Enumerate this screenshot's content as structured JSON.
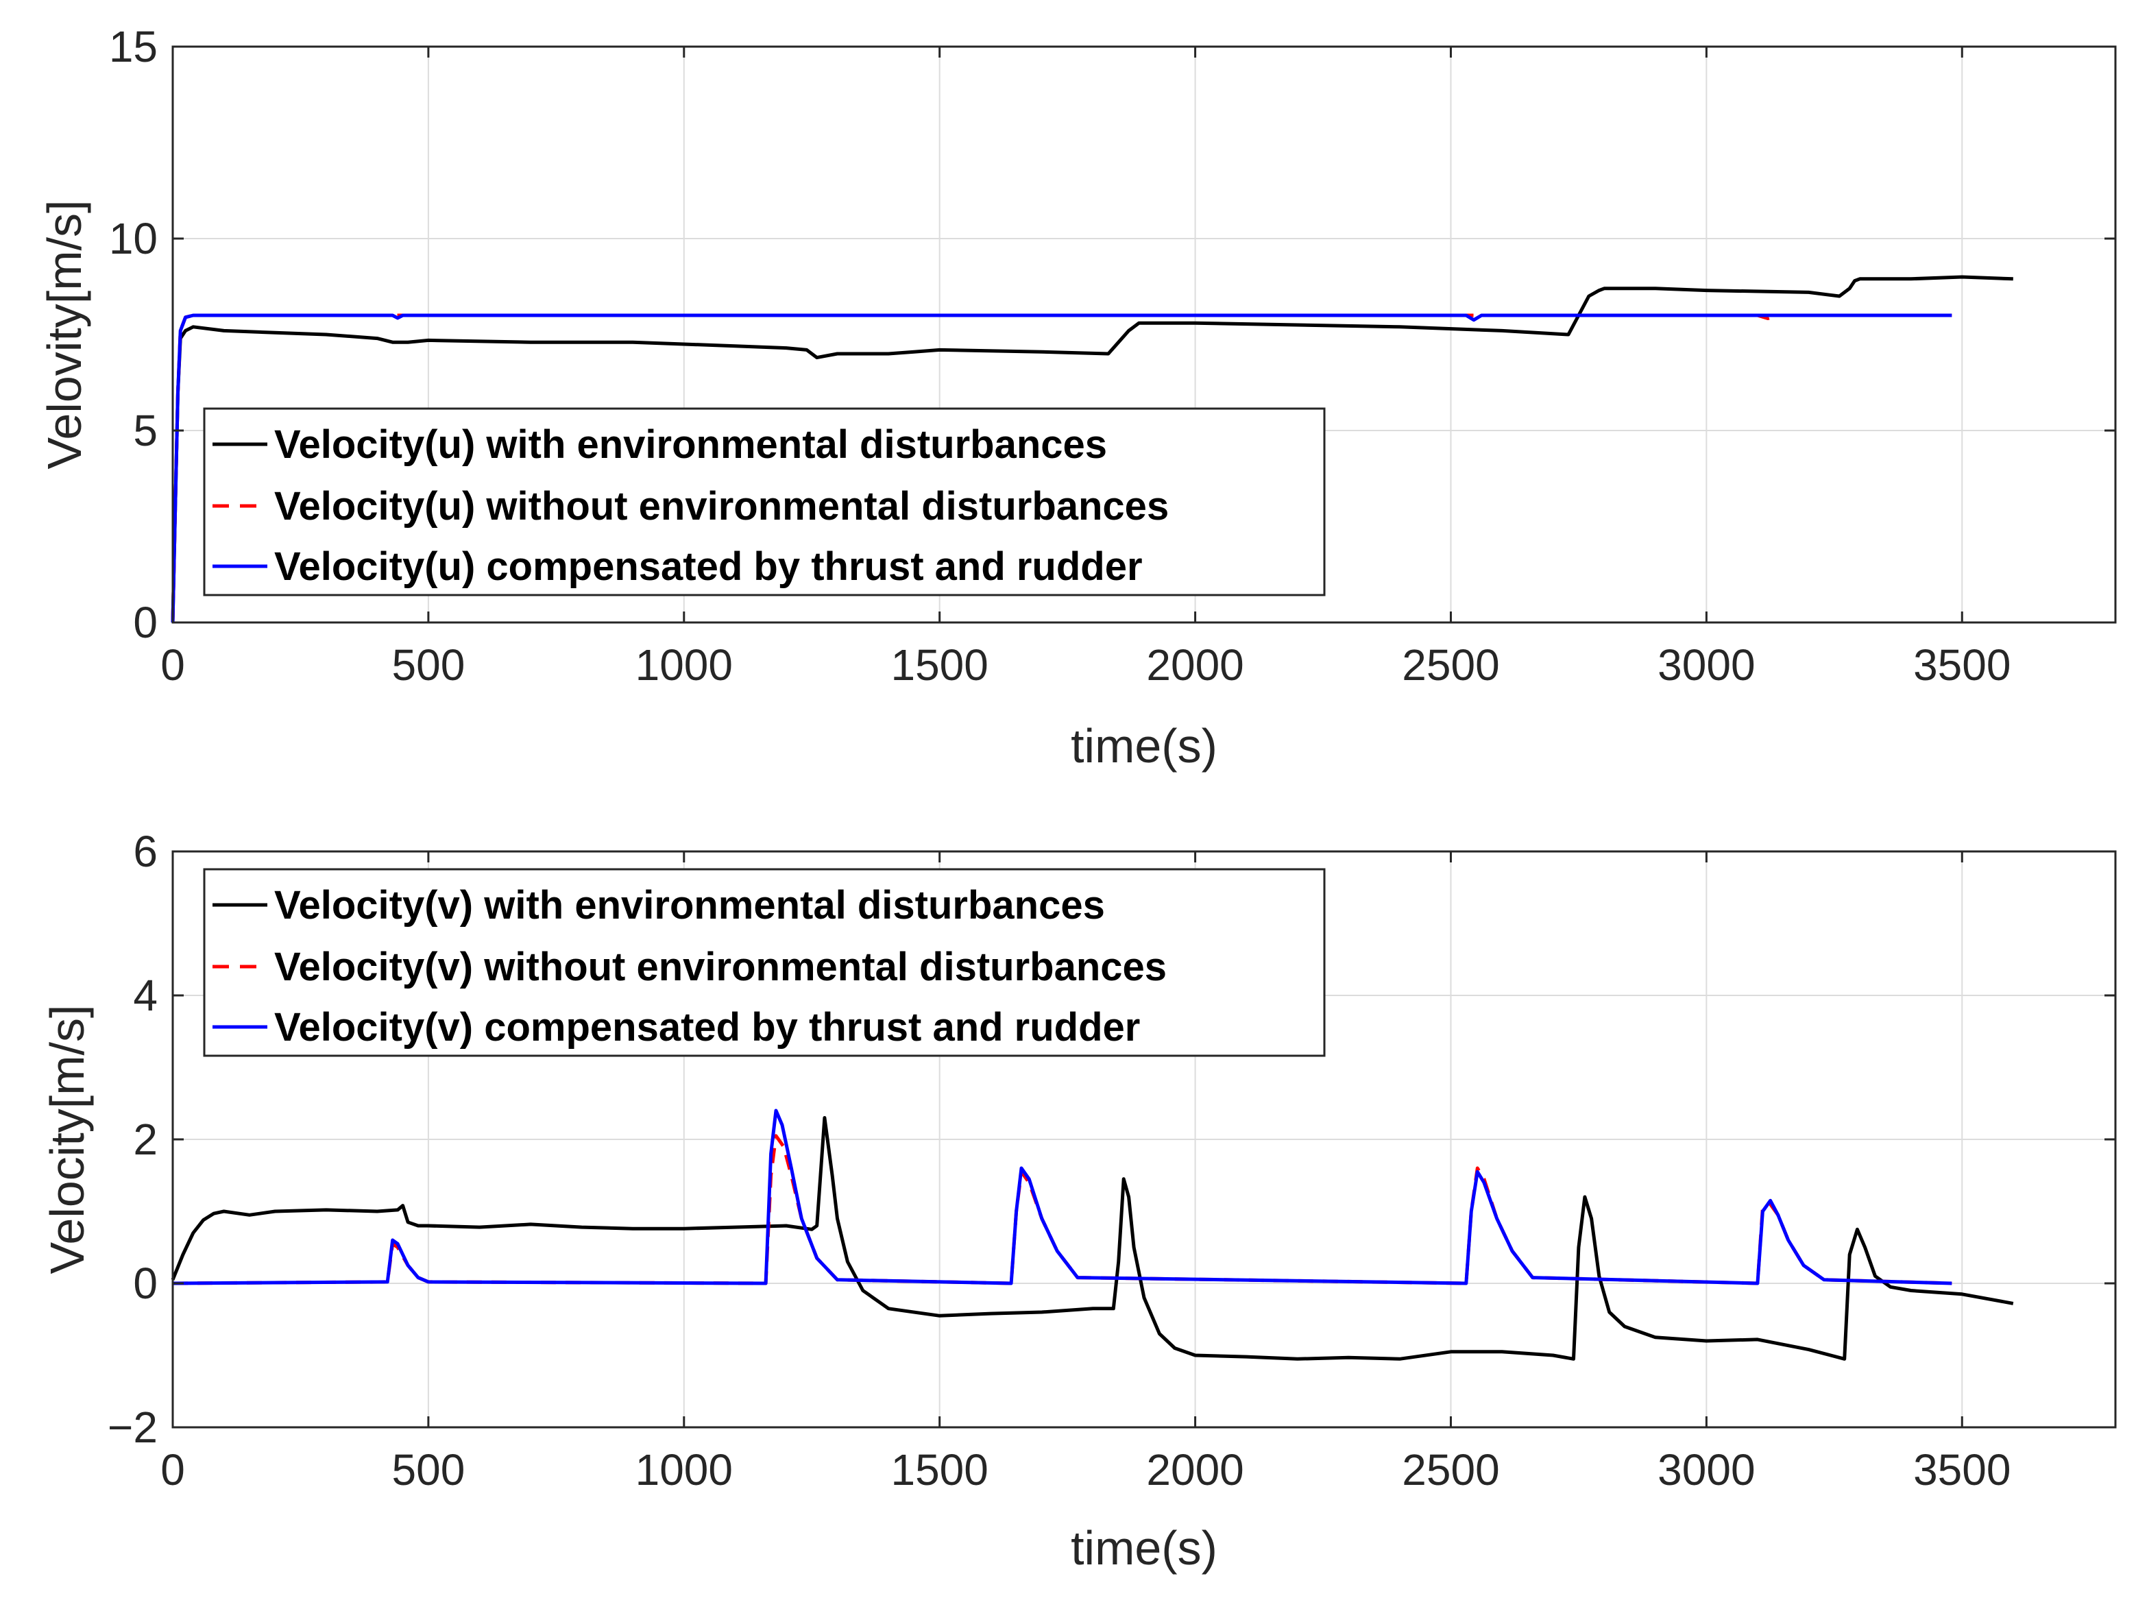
{
  "colors": {
    "with": "#000000",
    "without": "#ff0000",
    "compensated": "#0000ff",
    "axis": "#262626",
    "grid": "#dcdcdc"
  },
  "chart_data": [
    {
      "type": "line",
      "xlabel": "time(s)",
      "ylabel": "Velovity[m/s]",
      "xlim": [
        0,
        3800
      ],
      "ylim": [
        0,
        15
      ],
      "xticks": [
        0,
        500,
        1000,
        1500,
        2000,
        2500,
        3000,
        3500
      ],
      "yticks": [
        0,
        5,
        10,
        15
      ],
      "ytick_labels": [
        "0",
        "5",
        "10",
        "15"
      ],
      "grid": true,
      "legend_position": "lower-left",
      "series": [
        {
          "name": "Velocity(u) with environmental disturbances",
          "color_key": "with",
          "style": "solid",
          "x": [
            0,
            5,
            10,
            15,
            25,
            40,
            100,
            200,
            300,
            400,
            430,
            460,
            500,
            700,
            900,
            1100,
            1200,
            1240,
            1260,
            1300,
            1400,
            1450,
            1500,
            1700,
            1830,
            1850,
            1870,
            1890,
            2000,
            2200,
            2400,
            2600,
            2730,
            2750,
            2770,
            2790,
            2800,
            2900,
            3000,
            3200,
            3260,
            3280,
            3290,
            3300,
            3400,
            3500,
            3600
          ],
          "y": [
            0,
            3,
            6,
            7.4,
            7.6,
            7.7,
            7.6,
            7.55,
            7.5,
            7.4,
            7.3,
            7.3,
            7.35,
            7.3,
            7.3,
            7.2,
            7.15,
            7.1,
            6.9,
            7.0,
            7.0,
            7.05,
            7.1,
            7.05,
            7.0,
            7.3,
            7.6,
            7.8,
            7.8,
            7.75,
            7.7,
            7.6,
            7.5,
            8.0,
            8.5,
            8.65,
            8.7,
            8.7,
            8.65,
            8.6,
            8.5,
            8.7,
            8.9,
            8.95,
            8.95,
            9.0,
            8.95
          ]
        },
        {
          "name": "Velocity(u) without environmental disturbances",
          "color_key": "without",
          "style": "dashed",
          "x": [
            0,
            5,
            10,
            15,
            25,
            40,
            500,
            1000,
            1500,
            2000,
            2500,
            3000,
            3100,
            3120,
            3140,
            3480
          ],
          "y": [
            0,
            3,
            6,
            7.6,
            7.95,
            8.0,
            8.0,
            8.0,
            8.0,
            8.0,
            8.0,
            8.0,
            8.0,
            7.92,
            8.0,
            8.0
          ]
        },
        {
          "name": "Velocity(u) compensated by thrust and rudder",
          "color_key": "compensated",
          "style": "solid",
          "x": [
            0,
            5,
            10,
            15,
            25,
            40,
            430,
            440,
            450,
            500,
            1000,
            1500,
            2000,
            2530,
            2545,
            2560,
            3000,
            3480
          ],
          "y": [
            0,
            3,
            6,
            7.6,
            7.95,
            8.0,
            8.0,
            7.93,
            8.0,
            8.0,
            8.0,
            8.0,
            8.0,
            8.0,
            7.88,
            8.0,
            8.0,
            8.0
          ]
        }
      ]
    },
    {
      "type": "line",
      "xlabel": "time(s)",
      "ylabel": "Velocity[m/s]",
      "xlim": [
        0,
        3800
      ],
      "ylim": [
        -2,
        6
      ],
      "xticks": [
        0,
        500,
        1000,
        1500,
        2000,
        2500,
        3000,
        3500
      ],
      "yticks": [
        -2,
        0,
        2,
        4,
        6
      ],
      "ytick_labels": [
        "−2",
        "0",
        "2",
        "4",
        "6"
      ],
      "grid": true,
      "legend_position": "top-left",
      "series": [
        {
          "name": "Velocity(v) with environmental disturbances",
          "color_key": "with",
          "style": "solid",
          "x": [
            0,
            20,
            40,
            60,
            80,
            100,
            150,
            200,
            300,
            400,
            440,
            450,
            460,
            480,
            500,
            600,
            700,
            800,
            900,
            1000,
            1100,
            1200,
            1250,
            1260,
            1275,
            1290,
            1300,
            1320,
            1350,
            1400,
            1500,
            1600,
            1700,
            1800,
            1840,
            1850,
            1860,
            1870,
            1880,
            1900,
            1930,
            1960,
            2000,
            2100,
            2200,
            2300,
            2400,
            2500,
            2600,
            2700,
            2740,
            2750,
            2762,
            2775,
            2790,
            2810,
            2840,
            2900,
            3000,
            3100,
            3200,
            3270,
            3280,
            3295,
            3310,
            3330,
            3360,
            3400,
            3500,
            3600
          ],
          "y": [
            0.05,
            0.4,
            0.7,
            0.88,
            0.97,
            1.0,
            0.95,
            1.0,
            1.02,
            1.0,
            1.02,
            1.08,
            0.85,
            0.8,
            0.8,
            0.78,
            0.82,
            0.78,
            0.76,
            0.76,
            0.78,
            0.8,
            0.75,
            0.8,
            2.3,
            1.5,
            0.9,
            0.3,
            -0.1,
            -0.35,
            -0.45,
            -0.42,
            -0.4,
            -0.35,
            -0.35,
            0.3,
            1.45,
            1.2,
            0.5,
            -0.2,
            -0.7,
            -0.9,
            -1.0,
            -1.02,
            -1.05,
            -1.03,
            -1.05,
            -0.95,
            -0.95,
            -1.0,
            -1.05,
            0.5,
            1.2,
            0.9,
            0.1,
            -0.4,
            -0.6,
            -0.75,
            -0.8,
            -0.78,
            -0.92,
            -1.05,
            0.4,
            0.75,
            0.5,
            0.1,
            -0.05,
            -0.1,
            -0.15,
            -0.28
          ]
        },
        {
          "name": "Velocity(v) without environmental disturbances",
          "color_key": "without",
          "style": "dashed",
          "x": [
            0,
            420,
            430,
            440,
            460,
            480,
            500,
            1160,
            1170,
            1180,
            1195,
            1210,
            1230,
            1260,
            1300,
            1640,
            1650,
            1660,
            1675,
            1700,
            1730,
            1770,
            2530,
            2540,
            2552,
            2565,
            2590,
            2620,
            2660,
            3100,
            3110,
            3125,
            3140,
            3160,
            3190,
            3230,
            3480
          ],
          "y": [
            0,
            0.02,
            0.55,
            0.5,
            0.25,
            0.08,
            0.02,
            0.0,
            1.5,
            2.05,
            1.9,
            1.5,
            0.9,
            0.35,
            0.05,
            0.0,
            1.0,
            1.55,
            1.4,
            0.9,
            0.45,
            0.08,
            0.0,
            1.0,
            1.6,
            1.45,
            0.9,
            0.45,
            0.08,
            0.0,
            1.05,
            1.1,
            0.95,
            0.6,
            0.25,
            0.05,
            0.0
          ]
        },
        {
          "name": "Velocity(v) compensated by thrust and rudder",
          "color_key": "compensated",
          "style": "solid",
          "x": [
            0,
            420,
            430,
            440,
            460,
            480,
            500,
            1160,
            1170,
            1180,
            1192,
            1210,
            1230,
            1260,
            1300,
            1640,
            1650,
            1660,
            1675,
            1700,
            1730,
            1770,
            2530,
            2540,
            2552,
            2565,
            2590,
            2620,
            2660,
            3100,
            3110,
            3125,
            3140,
            3160,
            3190,
            3230,
            3480
          ],
          "y": [
            0,
            0.02,
            0.6,
            0.55,
            0.25,
            0.08,
            0.02,
            0.0,
            1.8,
            2.4,
            2.2,
            1.6,
            0.9,
            0.35,
            0.05,
            0.0,
            1.0,
            1.6,
            1.45,
            0.9,
            0.45,
            0.08,
            0.0,
            1.0,
            1.55,
            1.4,
            0.9,
            0.45,
            0.08,
            0.0,
            1.0,
            1.15,
            0.95,
            0.6,
            0.25,
            0.05,
            0.0
          ]
        }
      ]
    }
  ]
}
